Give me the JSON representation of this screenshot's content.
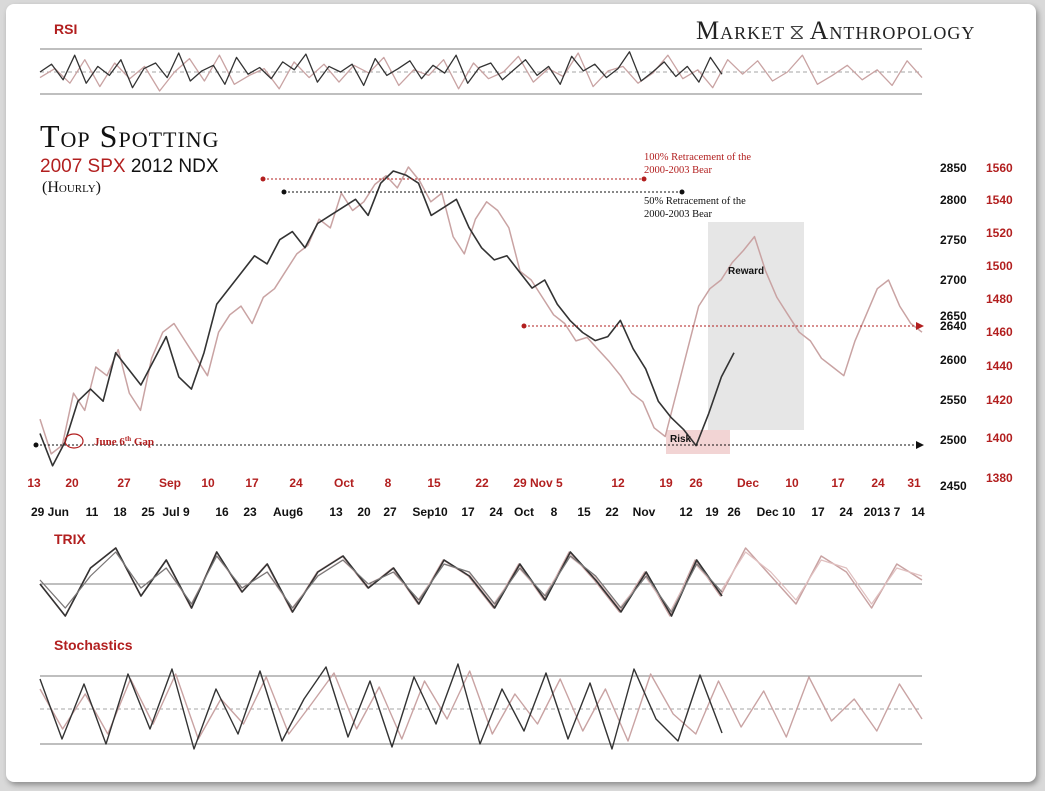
{
  "brand": {
    "left": "Market",
    "right": "Anthropology",
    "icon": "dna-helix-icon"
  },
  "title": {
    "main": "Top Spotting",
    "sub_red_1": "2007 SPX",
    "sub_black_1": "2012 NDX",
    "third": "(Hourly)"
  },
  "colors": {
    "spx_2007": "#c9a3a3",
    "ndx_2012": "#333333",
    "accent_red": "#b21f1f",
    "zone": "#e6e6e6",
    "risk_zone": "#f2d4d4"
  },
  "chart_data": [
    {
      "type": "line",
      "panel": "RSI",
      "title": "RSI",
      "series": [
        {
          "values": [
            55,
            62,
            48,
            70,
            45,
            60,
            52,
            66,
            41,
            58,
            63,
            50,
            72,
            47,
            56,
            61,
            44,
            68,
            53,
            59,
            49,
            64,
            57,
            71,
            46,
            60,
            55,
            62,
            43,
            67,
            52,
            58,
            65,
            49,
            61,
            54,
            70,
            45,
            59,
            63,
            48,
            57,
            66,
            52,
            60,
            44,
            69,
            56,
            62,
            50,
            58,
            73,
            47,
            55,
            64,
            51,
            60,
            46,
            68,
            53
          ]
        },
        {
          "values": [
            50,
            58,
            45,
            66,
            42,
            63,
            49,
            60,
            38,
            55,
            67,
            47,
            70,
            44,
            52,
            58,
            40,
            64,
            50,
            62,
            46,
            61,
            54,
            68,
            43,
            57,
            52,
            66,
            40,
            63,
            49,
            55,
            69,
            46,
            58,
            51,
            72,
            42,
            56,
            60,
            45,
            54,
            70,
            49,
            57,
            41,
            66,
            53,
            65,
            47,
            55,
            70,
            44,
            52,
            61,
            48,
            57,
            43,
            65,
            50
          ]
        }
      ]
    },
    {
      "type": "line",
      "panel": "price",
      "y_left_ticks": [
        "2850",
        "2800",
        "2750",
        "2700",
        "2650",
        "2640",
        "2600",
        "2550",
        "2500",
        "2450"
      ],
      "y_right_ticks": [
        "1560",
        "1540",
        "1520",
        "1500",
        "1480",
        "1460",
        "1440",
        "1420",
        "1400",
        "1380"
      ],
      "x_top_ticks": [
        "13",
        "20",
        "27",
        "Sep",
        "10",
        "17",
        "24",
        "Oct",
        "8",
        "15",
        "22",
        "29 Nov 5",
        "12",
        "19",
        "26",
        "Dec",
        "10",
        "17",
        "24",
        "31"
      ],
      "x_bottom_ticks": [
        "29 Jun",
        "11",
        "18",
        "25",
        "Jul 9",
        "16",
        "23",
        "Aug6",
        "13",
        "20",
        "27",
        "Sep10",
        "17",
        "24",
        "Oct",
        "8",
        "15",
        "22",
        "Nov",
        "12",
        "19",
        "26",
        "Dec 10",
        "17",
        "24",
        "2013 7",
        "14"
      ],
      "annotations": {
        "retrace100": "100% Retracement of the 2000-2003 Bear",
        "retrace50": "50% Retracement of the 2000-2003 Bear",
        "gap": "June 6th Gap",
        "reward": "Reward",
        "risk": "Risk"
      },
      "series": [
        {
          "values": [
            1415,
            1395,
            1400,
            1430,
            1420,
            1445,
            1440,
            1455,
            1430,
            1420,
            1450,
            1465,
            1470,
            1460,
            1450,
            1440,
            1465,
            1475,
            1480,
            1470,
            1485,
            1490,
            1500,
            1510,
            1515,
            1530,
            1525,
            1545,
            1535,
            1540,
            1550,
            1555,
            1548,
            1560,
            1552,
            1540,
            1545,
            1520,
            1510,
            1530,
            1540,
            1535,
            1525,
            1500,
            1495,
            1485,
            1475,
            1470,
            1460,
            1462,
            1455,
            1448,
            1440,
            1430,
            1425,
            1410,
            1405,
            1430,
            1455,
            1480,
            1490,
            1495,
            1505,
            1512,
            1520,
            1500,
            1485,
            1475,
            1465,
            1460,
            1450,
            1445,
            1440,
            1460,
            1475,
            1490,
            1495,
            1480,
            1470,
            1465
          ]
        },
        {
          "values": [
            2520,
            2480,
            2510,
            2560,
            2575,
            2560,
            2620,
            2600,
            2580,
            2610,
            2640,
            2590,
            2575,
            2620,
            2680,
            2700,
            2720,
            2740,
            2730,
            2760,
            2770,
            2750,
            2780,
            2790,
            2800,
            2810,
            2790,
            2830,
            2845,
            2840,
            2830,
            2790,
            2800,
            2810,
            2775,
            2750,
            2735,
            2740,
            2720,
            2700,
            2710,
            2680,
            2660,
            2645,
            2635,
            2640,
            2660,
            2625,
            2600,
            2560,
            2540,
            2525,
            2505,
            2545,
            2590,
            2620
          ]
        }
      ]
    },
    {
      "type": "line",
      "panel": "TRIX",
      "title": "TRIX",
      "series": [
        {
          "values": [
            0,
            -0.8,
            0.4,
            0.9,
            -0.3,
            0.6,
            -0.6,
            0.8,
            -0.2,
            0.5,
            -0.7,
            0.3,
            0.7,
            -0.1,
            0.4,
            -0.5,
            0.6,
            0.2,
            -0.6,
            0.5,
            -0.4,
            0.8,
            0.1,
            -0.7,
            0.3,
            -0.8,
            0.6,
            -0.3,
            0.9,
            0.2,
            -0.5,
            0.7,
            0.3,
            -0.6,
            0.5,
            0.1
          ]
        },
        {
          "values": [
            0.1,
            -0.6,
            0.2,
            0.8,
            -0.1,
            0.4,
            -0.5,
            0.7,
            -0.1,
            0.3,
            -0.6,
            0.2,
            0.6,
            0.0,
            0.3,
            -0.4,
            0.5,
            0.3,
            -0.5,
            0.4,
            -0.3,
            0.7,
            0.2,
            -0.6,
            0.2,
            -0.7,
            0.5,
            -0.2,
            0.8,
            0.3,
            -0.4,
            0.6,
            0.4,
            -0.5,
            0.4,
            0.2
          ]
        }
      ]
    },
    {
      "type": "line",
      "panel": "Stochastics",
      "title": "Stochastics",
      "series": [
        {
          "values": [
            80,
            20,
            75,
            15,
            85,
            30,
            90,
            10,
            70,
            25,
            88,
            18,
            60,
            92,
            22,
            78,
            12,
            82,
            35,
            95,
            15,
            70,
            28,
            86,
            20,
            76,
            10,
            90,
            40,
            18,
            84,
            26,
            72,
            14,
            88,
            30,
            66,
            20,
            80,
            35
          ]
        },
        {
          "values": [
            70,
            30,
            65,
            25,
            80,
            35,
            85,
            20,
            60,
            35,
            82,
            25,
            55,
            86,
            30,
            72,
            20,
            78,
            40,
            88,
            25,
            65,
            35,
            80,
            28,
            70,
            18,
            85,
            45,
            25,
            78,
            32,
            68,
            22,
            82,
            38,
            60,
            28,
            75,
            40
          ]
        }
      ]
    }
  ]
}
